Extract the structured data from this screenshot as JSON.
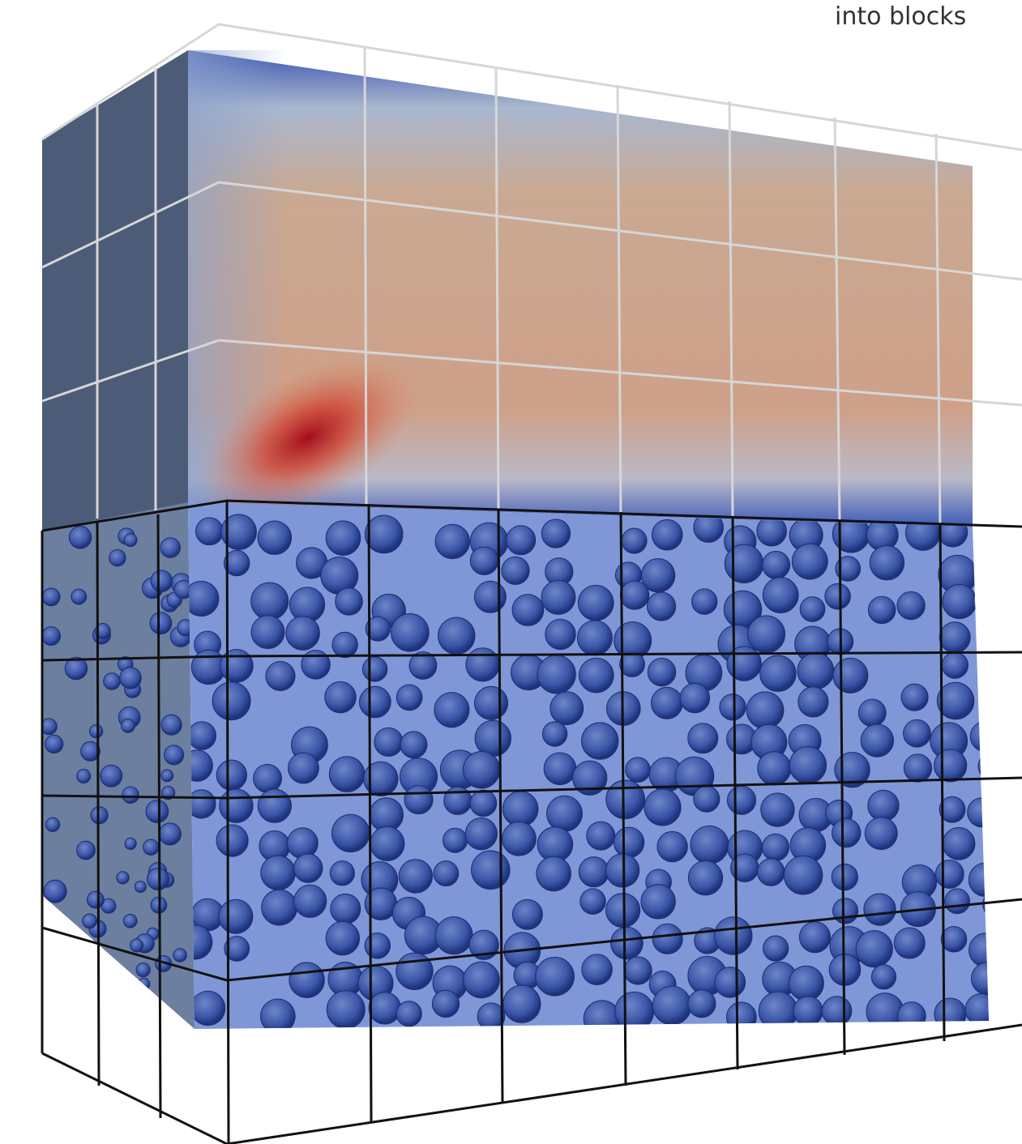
{
  "caption": "into blocks"
}
